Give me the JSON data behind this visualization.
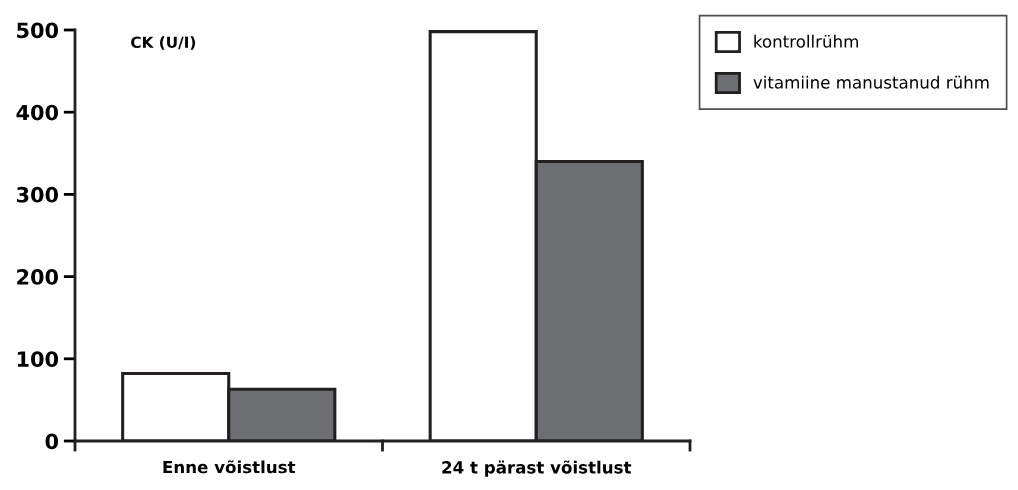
{
  "chart_data": {
    "type": "bar",
    "ylabel": "CK (U/I)",
    "categories": [
      "Enne võistlust",
      "24 t pärast võistlust"
    ],
    "series": [
      {
        "name": "kontrollrühm",
        "color": "#ffffff",
        "values": [
          82,
          498
        ]
      },
      {
        "name": "vitamiine manustanud rühm",
        "color": "#6d6e71",
        "values": [
          63,
          340
        ]
      }
    ],
    "ylim": [
      0,
      500
    ],
    "yticks": [
      0,
      100,
      200,
      300,
      400,
      500
    ],
    "grid": false,
    "legend": "top right"
  }
}
